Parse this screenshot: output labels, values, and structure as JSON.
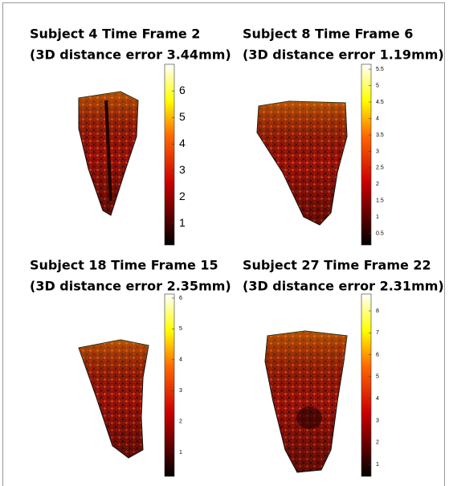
{
  "panels": [
    {
      "title": "Subject 4 Time Frame 2",
      "subtitle": "(3D distance error 3.44mm)",
      "colorbar": {
        "lim": [
          0.2,
          7.0
        ],
        "ticks": [
          1,
          2,
          3,
          4,
          5,
          6
        ]
      }
    },
    {
      "title": "Subject 8  Time Frame 6",
      "subtitle": "(3D distance error 1.19mm)",
      "colorbar": {
        "lim": [
          0.15,
          5.65
        ],
        "ticks": [
          0.5,
          1,
          1.5,
          2,
          2.5,
          3,
          3.5,
          4,
          4.5,
          5,
          5.5
        ]
      }
    },
    {
      "title": "Subject 18 Time Frame 15",
      "subtitle": "(3D distance error 2.35mm)",
      "colorbar": {
        "lim": [
          0.22,
          6.13
        ],
        "ticks": [
          1,
          2,
          3,
          4,
          5,
          6
        ]
      }
    },
    {
      "title": "Subject 27 Time Frame 22",
      "subtitle": "(3D distance error 2.31mm)",
      "colorbar": {
        "lim": [
          0.45,
          8.77
        ],
        "ticks": [
          1,
          2,
          3,
          4,
          5,
          6,
          7,
          8
        ]
      }
    }
  ]
}
